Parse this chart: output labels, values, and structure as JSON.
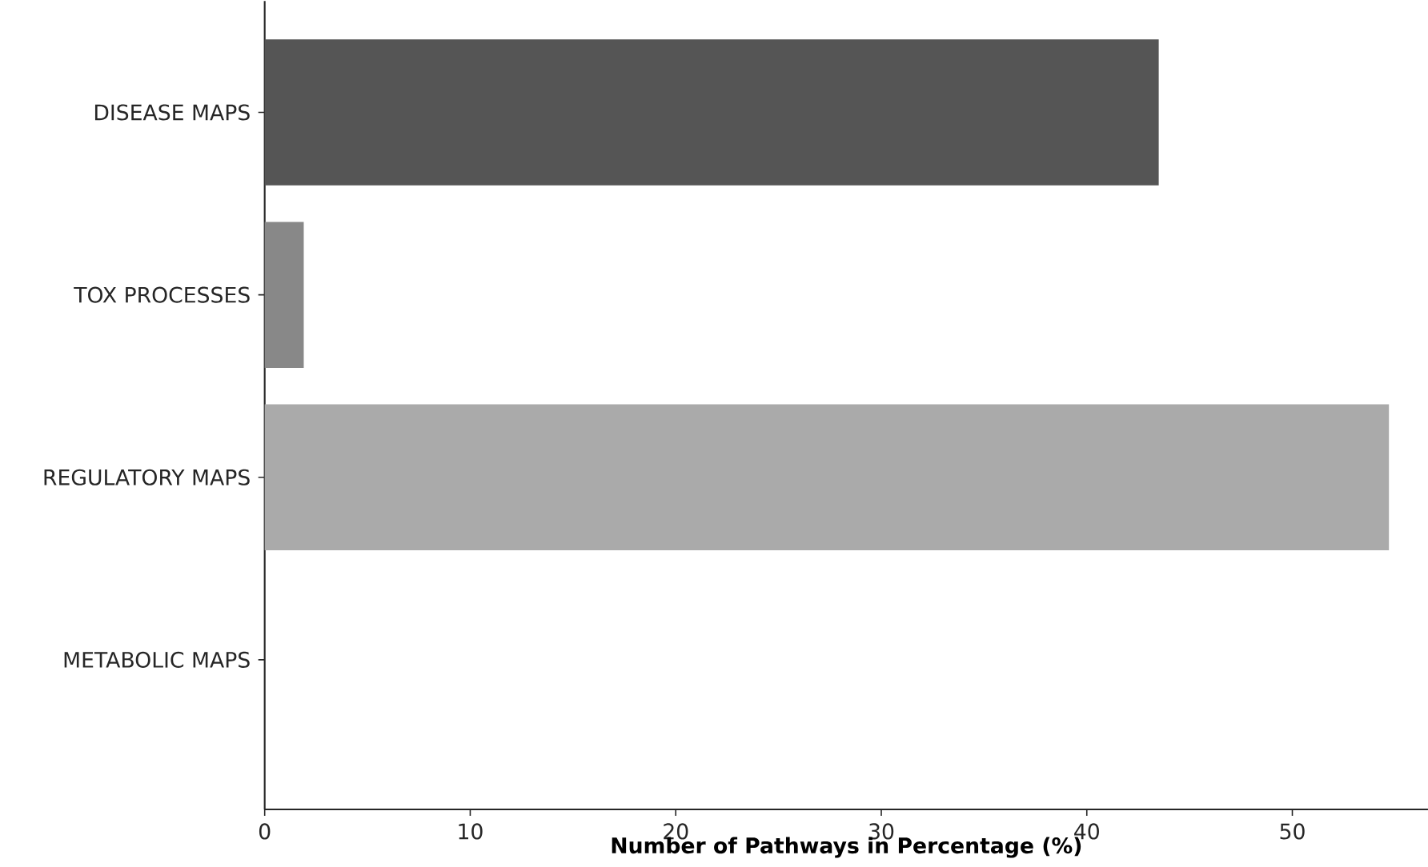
{
  "chart_data": {
    "type": "bar",
    "orientation": "horizontal",
    "categories": [
      "DISEASE MAPS",
      "TOX PROCESSES",
      "REGULATORY MAPS",
      "METABOLIC MAPS"
    ],
    "values": [
      43.5,
      1.9,
      54.7,
      0
    ],
    "colors": [
      "#555555",
      "#888888",
      "#aaaaaa",
      "#cccccc"
    ],
    "xlabel": "Number of Pathways in Percentage (%)",
    "xlim": [
      0,
      56.6
    ],
    "xticks": [
      0,
      10,
      20,
      30,
      40,
      50
    ],
    "grid": false
  }
}
